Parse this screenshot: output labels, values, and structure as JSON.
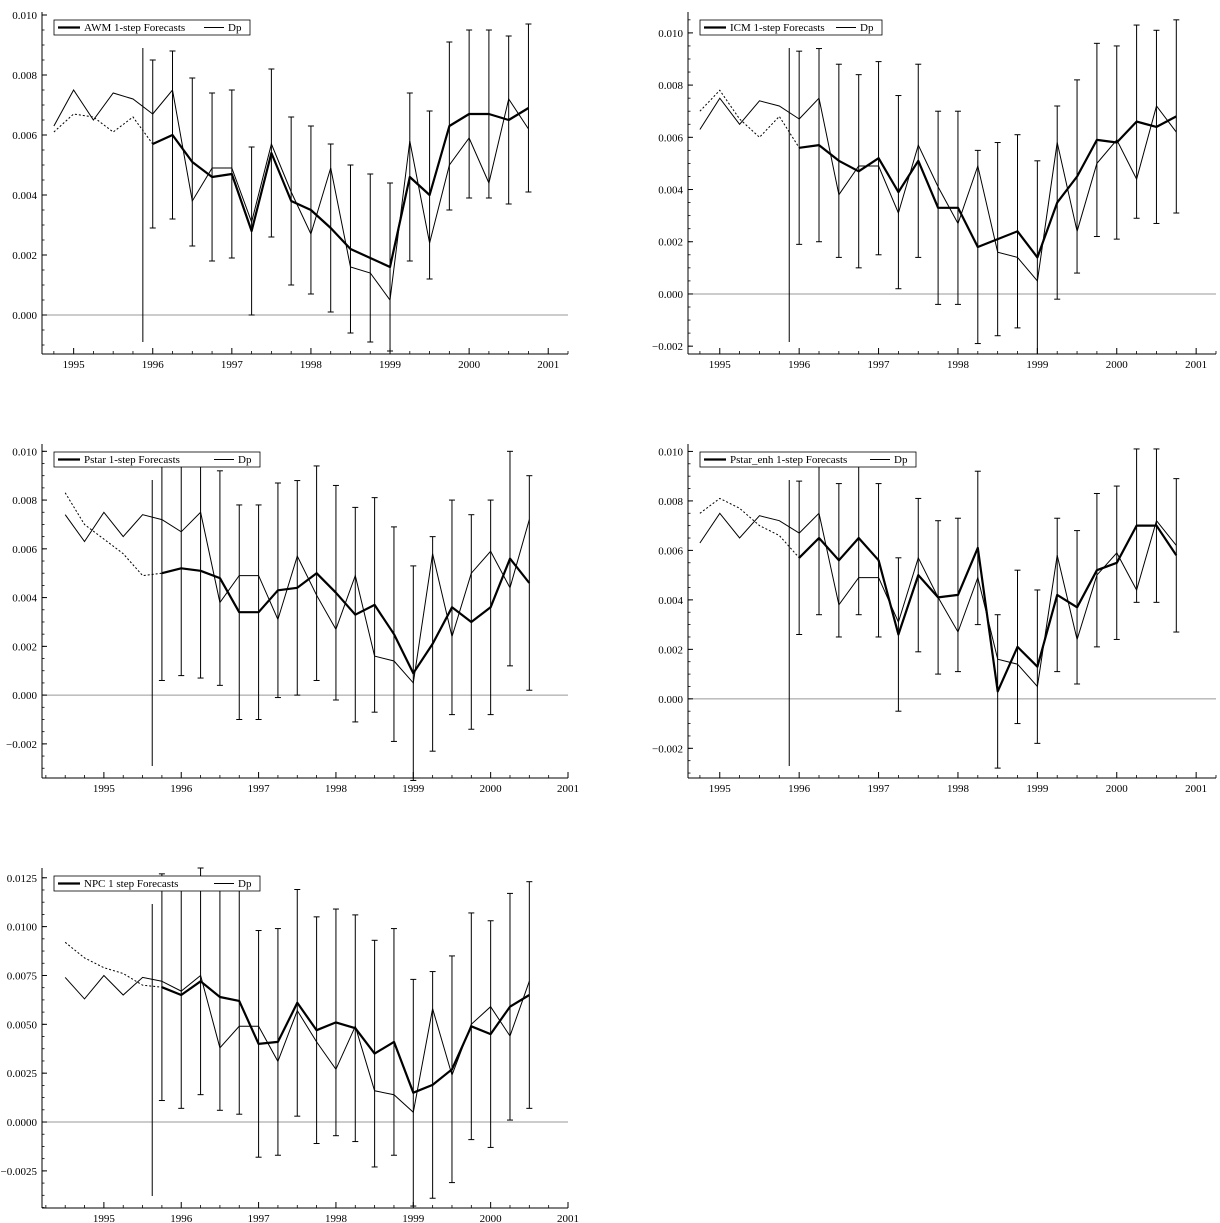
{
  "chart_data": [
    {
      "type": "line",
      "legend": [
        "AWM 1-step Forecasts",
        "Dp"
      ],
      "legend_placement": "top-left",
      "xlim": [
        1994.6,
        2001.25
      ],
      "ylim": [
        -0.0013,
        0.0101
      ],
      "xticks": [
        1995,
        1996,
        1997,
        1998,
        1999,
        2000,
        2001
      ],
      "yticks": [
        0.0,
        0.002,
        0.004,
        0.006,
        0.008,
        0.01
      ],
      "ytick_labels": [
        "0.000",
        "0.002",
        "0.004",
        "0.006",
        "0.008",
        "0.010"
      ],
      "zero_line": true,
      "forecast_origin": 1995.875,
      "pre_sample": {
        "x": [
          1994.75,
          1995.0,
          1995.25,
          1995.5,
          1995.75,
          1996.0
        ],
        "dp": [
          0.0063,
          0.0075,
          0.0065,
          0.0074,
          0.0072,
          0.0067
        ],
        "fitted": [
          0.0061,
          0.0067,
          0.0066,
          0.0061,
          0.0066,
          0.0057
        ]
      },
      "series": [
        {
          "name": "AWM 1-step Forecasts",
          "x": [
            1996.0,
            1996.25,
            1996.5,
            1996.75,
            1997.0,
            1997.25,
            1997.5,
            1997.75,
            1998.0,
            1998.25,
            1998.5,
            1998.75,
            1999.0,
            1999.25,
            1999.5,
            1999.75,
            2000.0,
            2000.25,
            2000.5,
            2000.75
          ],
          "values": [
            0.0057,
            0.006,
            0.0051,
            0.0046,
            0.0047,
            0.0028,
            0.0054,
            0.0038,
            0.0035,
            0.0029,
            0.0022,
            0.0019,
            0.0016,
            0.0046,
            0.004,
            0.0063,
            0.0067,
            0.0067,
            0.0065,
            0.0069
          ],
          "lower": [
            0.0029,
            0.0032,
            0.0023,
            0.0018,
            0.0019,
            0.0,
            0.0026,
            0.001,
            0.0007,
            0.0001,
            -0.0006,
            -0.0009,
            -0.0012,
            0.0018,
            0.0012,
            0.0035,
            0.0039,
            0.0039,
            0.0037,
            0.0041
          ],
          "upper": [
            0.0085,
            0.0088,
            0.0079,
            0.0074,
            0.0075,
            0.0056,
            0.0082,
            0.0066,
            0.0063,
            0.0057,
            0.005,
            0.0047,
            0.0044,
            0.0074,
            0.0068,
            0.0091,
            0.0095,
            0.0095,
            0.0093,
            0.0097
          ]
        },
        {
          "name": "Dp",
          "x": [
            1996.0,
            1996.25,
            1996.5,
            1996.75,
            1997.0,
            1997.25,
            1997.5,
            1997.75,
            1998.0,
            1998.25,
            1998.5,
            1998.75,
            1999.0,
            1999.25,
            1999.5,
            1999.75,
            2000.0,
            2000.25,
            2000.5,
            2000.75
          ],
          "values": [
            0.0067,
            0.0075,
            0.0038,
            0.0049,
            0.0049,
            0.0031,
            0.0057,
            0.0041,
            0.0027,
            0.0049,
            0.0016,
            0.0014,
            0.0005,
            0.0058,
            0.0024,
            0.005,
            0.0059,
            0.0044,
            0.0072,
            0.0062
          ]
        }
      ]
    },
    {
      "type": "line",
      "legend": [
        "ICM 1-step Forecasts",
        "Dp"
      ],
      "legend_placement": "top-left",
      "xlim": [
        1994.6,
        2001.25
      ],
      "ylim": [
        -0.0023,
        0.0108
      ],
      "xticks": [
        1995,
        1996,
        1997,
        1998,
        1999,
        2000,
        2001
      ],
      "yticks": [
        -0.002,
        0.0,
        0.002,
        0.004,
        0.006,
        0.008,
        0.01
      ],
      "ytick_labels": [
        "−0.002",
        "0.000",
        "0.002",
        "0.004",
        "0.006",
        "0.008",
        "0.010"
      ],
      "zero_line": true,
      "forecast_origin": 1995.875,
      "pre_sample": {
        "x": [
          1994.75,
          1995.0,
          1995.25,
          1995.5,
          1995.75,
          1996.0
        ],
        "dp": [
          0.0063,
          0.0075,
          0.0065,
          0.0074,
          0.0072,
          0.0067
        ],
        "fitted": [
          0.007,
          0.0078,
          0.0067,
          0.006,
          0.0068,
          0.0056
        ]
      },
      "series": [
        {
          "name": "ICM 1-step Forecasts",
          "x": [
            1996.0,
            1996.25,
            1996.5,
            1996.75,
            1997.0,
            1997.25,
            1997.5,
            1997.75,
            1998.0,
            1998.25,
            1998.5,
            1998.75,
            1999.0,
            1999.25,
            1999.5,
            1999.75,
            2000.0,
            2000.25,
            2000.5,
            2000.75
          ],
          "values": [
            0.0056,
            0.0057,
            0.0051,
            0.0047,
            0.0052,
            0.0039,
            0.0051,
            0.0033,
            0.0033,
            0.0018,
            0.0021,
            0.0024,
            0.0014,
            0.0035,
            0.0045,
            0.0059,
            0.0058,
            0.0066,
            0.0064,
            0.0068
          ],
          "lower": [
            0.0019,
            0.002,
            0.0014,
            0.001,
            0.0015,
            0.0002,
            0.0014,
            -0.0004,
            -0.0004,
            -0.0019,
            -0.0016,
            -0.0013,
            -0.0023,
            -0.0002,
            0.0008,
            0.0022,
            0.0021,
            0.0029,
            0.0027,
            0.0031
          ],
          "upper": [
            0.0093,
            0.0094,
            0.0088,
            0.0084,
            0.0089,
            0.0076,
            0.0088,
            0.007,
            0.007,
            0.0055,
            0.0058,
            0.0061,
            0.0051,
            0.0072,
            0.0082,
            0.0096,
            0.0095,
            0.0103,
            0.0101,
            0.0105
          ]
        },
        {
          "name": "Dp",
          "x": [
            1996.0,
            1996.25,
            1996.5,
            1996.75,
            1997.0,
            1997.25,
            1997.5,
            1997.75,
            1998.0,
            1998.25,
            1998.5,
            1998.75,
            1999.0,
            1999.25,
            1999.5,
            1999.75,
            2000.0,
            2000.25,
            2000.5,
            2000.75
          ],
          "values": [
            0.0067,
            0.0075,
            0.0038,
            0.0049,
            0.0049,
            0.0031,
            0.0057,
            0.0041,
            0.0027,
            0.0049,
            0.0016,
            0.0014,
            0.0005,
            0.0058,
            0.0024,
            0.005,
            0.0059,
            0.0044,
            0.0072,
            0.0062
          ]
        }
      ]
    },
    {
      "type": "line",
      "legend": [
        "Pstar 1-step Forecasts",
        "Dp"
      ],
      "legend_placement": "top-left",
      "xlim": [
        1994.2,
        2001.0
      ],
      "ylim": [
        -0.0034,
        0.0103
      ],
      "xticks": [
        1995,
        1996,
        1997,
        1998,
        1999,
        2000,
        2001
      ],
      "yticks": [
        -0.002,
        0.0,
        0.002,
        0.004,
        0.006,
        0.008,
        0.01
      ],
      "ytick_labels": [
        "−0.002",
        "0.000",
        "0.002",
        "0.004",
        "0.006",
        "0.008",
        "0.010"
      ],
      "zero_line": true,
      "forecast_origin": 1995.625,
      "pre_sample": {
        "x": [
          1994.5,
          1994.75,
          1995.0,
          1995.25,
          1995.5,
          1995.75
        ],
        "dp": [
          0.0074,
          0.0063,
          0.0075,
          0.0065,
          0.0074,
          0.0072
        ],
        "fitted": [
          0.0083,
          0.007,
          0.0064,
          0.0058,
          0.0049,
          0.005
        ]
      },
      "series": [
        {
          "name": "Pstar 1-step Forecasts",
          "x": [
            1995.75,
            1996.0,
            1996.25,
            1996.5,
            1996.75,
            1997.0,
            1997.25,
            1997.5,
            1997.75,
            1998.0,
            1998.25,
            1998.5,
            1998.75,
            1999.0,
            1999.25,
            1999.5,
            1999.75,
            2000.0,
            2000.25,
            2000.5
          ],
          "values": [
            0.005,
            0.0052,
            0.0051,
            0.0048,
            0.0034,
            0.0034,
            0.0043,
            0.0044,
            0.005,
            0.0042,
            0.0033,
            0.0037,
            0.0025,
            0.0009,
            0.0021,
            0.0036,
            0.003,
            0.0036,
            0.0056,
            0.0046
          ],
          "lower": [
            0.0006,
            0.0008,
            0.0007,
            0.0004,
            -0.001,
            -0.001,
            -0.0001,
            0.0,
            0.0006,
            -0.0002,
            -0.0011,
            -0.0007,
            -0.0019,
            -0.0035,
            -0.0023,
            -0.0008,
            -0.0014,
            -0.0008,
            0.0012,
            0.0002
          ],
          "upper": [
            0.0094,
            0.0096,
            0.0095,
            0.0092,
            0.0078,
            0.0078,
            0.0087,
            0.0088,
            0.0094,
            0.0086,
            0.0077,
            0.0081,
            0.0069,
            0.0053,
            0.0065,
            0.008,
            0.0074,
            0.008,
            0.01,
            0.009
          ]
        },
        {
          "name": "Dp",
          "x": [
            1995.75,
            1996.0,
            1996.25,
            1996.5,
            1996.75,
            1997.0,
            1997.25,
            1997.5,
            1997.75,
            1998.0,
            1998.25,
            1998.5,
            1998.75,
            1999.0,
            1999.25,
            1999.5,
            1999.75,
            2000.0,
            2000.25,
            2000.5
          ],
          "values": [
            0.0072,
            0.0067,
            0.0075,
            0.0038,
            0.0049,
            0.0049,
            0.0031,
            0.0057,
            0.0041,
            0.0027,
            0.0049,
            0.0016,
            0.0014,
            0.0005,
            0.0058,
            0.0024,
            0.005,
            0.0059,
            0.0044,
            0.0072
          ]
        }
      ]
    },
    {
      "type": "line",
      "legend": [
        "Pstar_enh 1-step Forecasts",
        "Dp"
      ],
      "legend_placement": "top-left",
      "xlim": [
        1994.6,
        2001.25
      ],
      "ylim": [
        -0.0032,
        0.0103
      ],
      "xticks": [
        1995,
        1996,
        1997,
        1998,
        1999,
        2000,
        2001
      ],
      "yticks": [
        -0.002,
        0.0,
        0.002,
        0.004,
        0.006,
        0.008,
        0.01
      ],
      "ytick_labels": [
        "−0.002",
        "0.000",
        "0.002",
        "0.004",
        "0.006",
        "0.008",
        "0.010"
      ],
      "zero_line": true,
      "forecast_origin": 1995.875,
      "pre_sample": {
        "x": [
          1994.75,
          1995.0,
          1995.25,
          1995.5,
          1995.75,
          1996.0
        ],
        "dp": [
          0.0063,
          0.0075,
          0.0065,
          0.0074,
          0.0072,
          0.0067
        ],
        "fitted": [
          0.0075,
          0.0081,
          0.0077,
          0.007,
          0.0066,
          0.0057
        ]
      },
      "series": [
        {
          "name": "Pstar_enh 1-step Forecasts",
          "x": [
            1996.0,
            1996.25,
            1996.5,
            1996.75,
            1997.0,
            1997.25,
            1997.5,
            1997.75,
            1998.0,
            1998.25,
            1998.5,
            1998.75,
            1999.0,
            1999.25,
            1999.5,
            1999.75,
            2000.0,
            2000.25,
            2000.5,
            2000.75
          ],
          "values": [
            0.0057,
            0.0065,
            0.0056,
            0.0065,
            0.0056,
            0.0026,
            0.005,
            0.0041,
            0.0042,
            0.0061,
            0.0003,
            0.0021,
            0.0013,
            0.0042,
            0.0037,
            0.0052,
            0.0055,
            0.007,
            0.007,
            0.0058
          ],
          "lower": [
            0.0026,
            0.0034,
            0.0025,
            0.0034,
            0.0025,
            -0.0005,
            0.0019,
            0.001,
            0.0011,
            0.003,
            -0.0028,
            -0.001,
            -0.0018,
            0.0011,
            0.0006,
            0.0021,
            0.0024,
            0.0039,
            0.0039,
            0.0027
          ],
          "upper": [
            0.0088,
            0.0096,
            0.0087,
            0.0096,
            0.0087,
            0.0057,
            0.0081,
            0.0072,
            0.0073,
            0.0092,
            0.0034,
            0.0052,
            0.0044,
            0.0073,
            0.0068,
            0.0083,
            0.0086,
            0.0101,
            0.0101,
            0.0089
          ]
        },
        {
          "name": "Dp",
          "x": [
            1996.0,
            1996.25,
            1996.5,
            1996.75,
            1997.0,
            1997.25,
            1997.5,
            1997.75,
            1998.0,
            1998.25,
            1998.5,
            1998.75,
            1999.0,
            1999.25,
            1999.5,
            1999.75,
            2000.0,
            2000.25,
            2000.5,
            2000.75
          ],
          "values": [
            0.0067,
            0.0075,
            0.0038,
            0.0049,
            0.0049,
            0.0031,
            0.0057,
            0.0041,
            0.0027,
            0.0049,
            0.0016,
            0.0014,
            0.0005,
            0.0058,
            0.0024,
            0.005,
            0.0059,
            0.0044,
            0.0072,
            0.0062
          ]
        }
      ]
    },
    {
      "type": "line",
      "legend": [
        "NPC 1 step Forecasts",
        "Dp"
      ],
      "legend_placement": "top-left",
      "xlim": [
        1994.2,
        2001.0
      ],
      "ylim": [
        -0.0044,
        0.013
      ],
      "xticks": [
        1995,
        1996,
        1997,
        1998,
        1999,
        2000,
        2001
      ],
      "yticks": [
        -0.0025,
        0.0,
        0.0025,
        0.005,
        0.0075,
        0.01,
        0.0125
      ],
      "ytick_labels": [
        "−0.0025",
        "0.0000",
        "0.0025",
        "0.0050",
        "0.0075",
        "0.0100",
        "0.0125"
      ],
      "zero_line": true,
      "forecast_origin": 1995.625,
      "pre_sample": {
        "x": [
          1994.5,
          1994.75,
          1995.0,
          1995.25,
          1995.5,
          1995.75
        ],
        "dp": [
          0.0074,
          0.0063,
          0.0075,
          0.0065,
          0.0074,
          0.0072
        ],
        "fitted": [
          0.0092,
          0.0084,
          0.0079,
          0.0076,
          0.007,
          0.0069
        ]
      },
      "series": [
        {
          "name": "NPC 1 step Forecasts",
          "x": [
            1995.75,
            1996.0,
            1996.25,
            1996.5,
            1996.75,
            1997.0,
            1997.25,
            1997.5,
            1997.75,
            1998.0,
            1998.25,
            1998.5,
            1998.75,
            1999.0,
            1999.25,
            1999.5,
            1999.75,
            2000.0,
            2000.25,
            2000.5
          ],
          "values": [
            0.0069,
            0.0065,
            0.0072,
            0.0064,
            0.0062,
            0.004,
            0.0041,
            0.0061,
            0.0047,
            0.0051,
            0.0048,
            0.0035,
            0.0041,
            0.0015,
            0.0019,
            0.0027,
            0.0049,
            0.0045,
            0.0059,
            0.0065
          ],
          "lower": [
            0.0011,
            0.0007,
            0.0014,
            0.0006,
            0.0004,
            -0.0018,
            -0.0017,
            0.0003,
            -0.0011,
            -0.0007,
            -0.001,
            -0.0023,
            -0.0017,
            -0.0043,
            -0.0039,
            -0.0031,
            -0.0009,
            -0.0013,
            0.0001,
            0.0007
          ],
          "upper": [
            0.0127,
            0.0123,
            0.013,
            0.0122,
            0.012,
            0.0098,
            0.0099,
            0.0119,
            0.0105,
            0.0109,
            0.0106,
            0.0093,
            0.0099,
            0.0073,
            0.0077,
            0.0085,
            0.0107,
            0.0103,
            0.0117,
            0.0123
          ]
        },
        {
          "name": "Dp",
          "x": [
            1995.75,
            1996.0,
            1996.25,
            1996.5,
            1996.75,
            1997.0,
            1997.25,
            1997.5,
            1997.75,
            1998.0,
            1998.25,
            1998.5,
            1998.75,
            1999.0,
            1999.25,
            1999.5,
            1999.75,
            2000.0,
            2000.25,
            2000.5
          ],
          "values": [
            0.0072,
            0.0067,
            0.0075,
            0.0038,
            0.0049,
            0.0049,
            0.0031,
            0.0057,
            0.0041,
            0.0027,
            0.0049,
            0.0016,
            0.0014,
            0.0005,
            0.0058,
            0.0024,
            0.005,
            0.0059,
            0.0044,
            0.0072
          ]
        }
      ]
    }
  ]
}
